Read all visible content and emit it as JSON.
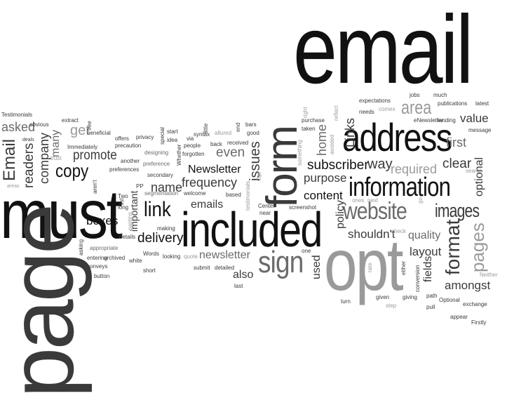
{
  "words": {
    "email": "email",
    "must": "must",
    "page": "page",
    "opt": "opt",
    "included": "included",
    "address": "address",
    "form": "form",
    "information": "information",
    "sign": "sign",
    "website": "website",
    "images": "images",
    "area": "area",
    "format": "format",
    "pages": "pages",
    "link": "link",
    "copy": "copy",
    "readers": "readers",
    "company": "company",
    "email_cap": "Email",
    "asked": "asked",
    "get": "get",
    "promote": "promote",
    "boxes": "boxes",
    "delivery": "delivery",
    "name": "name",
    "newsletter_cap": "Newsletter",
    "frequency": "frequency",
    "emails": "emails",
    "newsletter": "newsletter",
    "issues": "issues",
    "even": "even",
    "content": "content",
    "subscriber": "subscriber",
    "way": "way",
    "required": "required",
    "purpose": "purpose",
    "links": "Links",
    "home": "home",
    "clear": "clear",
    "first": "first",
    "value": "value",
    "optional": "optional",
    "shouldnt": "shouldn't",
    "quality": "quality",
    "layout": "layout",
    "fields": "fields",
    "amongst": "amongst",
    "used": "used",
    "also": "also",
    "policy": "policy",
    "important": "important",
    "many": "many",
    "testimonials": "Testimonials",
    "obvious": "obvious",
    "deals": "deals",
    "trust": "trust",
    "areas": "areas",
    "extract": "extract",
    "free": "free",
    "immediately": "Immediately",
    "beneficial": "beneficial",
    "offers": "offers",
    "privacy": "privacy",
    "precaution": "precaution",
    "another": "another",
    "preferences": "preferences",
    "designing": "designing",
    "preference": "preference",
    "secondary": "secondary",
    "segmentation": "segmentation",
    "two": "Two",
    "pp": "PP",
    "long": "long",
    "list": "list",
    "pasting": "pasting",
    "details": "details",
    "arent": "aren't",
    "making": "making",
    "appropriate": "appropriate",
    "asking": "asking",
    "entering": "entering",
    "archived": "archived",
    "conveys": "conveys",
    "button": "button",
    "white": "white",
    "words_cap": "Words",
    "short": "short",
    "looking": "looking",
    "quote": "quote",
    "submit": "submit",
    "detailed": "detailed",
    "last": "last",
    "start": "start",
    "idea": "idea",
    "special": "special",
    "whether": "Whether",
    "via": "via",
    "syntax": "syntax",
    "allured": "allured",
    "people": "people",
    "forgotten": "forgotten",
    "welcome": "welcome",
    "little": "little",
    "back": "back",
    "received": "received",
    "based": "based",
    "testimonials_lc": "testimonials",
    "center": "Center",
    "near": "near",
    "good": "good",
    "end": "end",
    "bars": "bars",
    "screenshot": "screenshot",
    "opt_cap": "Opt",
    "expectations": "expectations",
    "needs": "needs",
    "comes": "comes",
    "purchase": "purchase",
    "taken": "taken",
    "avoided": "avoided",
    "right": "right",
    "reflect": "reflect",
    "something": "something",
    "jobs": "jobs",
    "much": "much",
    "publications": "publications",
    "latest": "latest",
    "enewsletter": "eNewsletter",
    "landing": "landing",
    "message": "message",
    "search": "search",
    "ones": "ones",
    "next": "next",
    "go": "go",
    "check": "check",
    "one": "one",
    "rate": "rate",
    "either": "either",
    "conversion": "conversion",
    "path": "path",
    "turn": "turn",
    "given": "given",
    "giving": "giving",
    "step": "step",
    "pull": "pull",
    "optional_cap": "Optional",
    "exchange": "exchange",
    "appear": "appear",
    "firstly": "Firstly",
    "neither": "Neither"
  }
}
